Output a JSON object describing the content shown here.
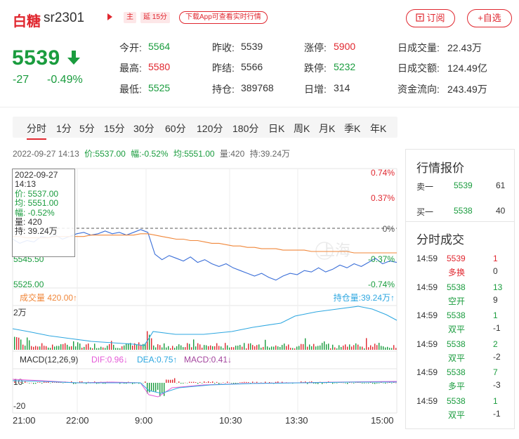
{
  "header": {
    "name": "白糖",
    "code": "sr2301",
    "tag_main": "主",
    "tag_delay": "延 15分",
    "download_text": "下载App可查看实时行情",
    "subscribe_label": "订阅",
    "favorite_label": "+自选"
  },
  "quote": {
    "price": "5539",
    "change": "-27",
    "change_pct": "-0.49%"
  },
  "stats": [
    {
      "label": "今开:",
      "value": "5564",
      "color": "green"
    },
    {
      "label": "昨收:",
      "value": "5539",
      "color": "gray"
    },
    {
      "label": "涨停:",
      "value": "5900",
      "color": "red"
    },
    {
      "label": "日成交量:",
      "value": "22.43万",
      "color": "gray"
    },
    {
      "label": "最高:",
      "value": "5580",
      "color": "red"
    },
    {
      "label": "昨结:",
      "value": "5566",
      "color": "gray"
    },
    {
      "label": "跌停:",
      "value": "5232",
      "color": "green"
    },
    {
      "label": "日成交额:",
      "value": "124.49亿",
      "color": "gray"
    },
    {
      "label": "最低:",
      "value": "5525",
      "color": "green"
    },
    {
      "label": "持仓:",
      "value": "389768",
      "color": "gray"
    },
    {
      "label": "日增:",
      "value": "314",
      "color": "gray"
    },
    {
      "label": "资金流向:",
      "value": "243.49万",
      "color": "gray"
    }
  ],
  "tabs": [
    "分时",
    "1分",
    "5分",
    "15分",
    "30分",
    "60分",
    "120分",
    "180分",
    "日K",
    "周K",
    "月K",
    "季K",
    "年K"
  ],
  "info_line": {
    "datetime": "2022-09-27 14:13",
    "price": "价:5537.00",
    "amp": "幅:-0.52%",
    "avg": "均:5551.00",
    "vol": "量:420",
    "hold": "持:39.24万"
  },
  "tooltip": {
    "date": "2022-09-27",
    "time": "14:13",
    "price": "价: 5537.00",
    "avg": "均: 5551.00",
    "amp": "幅: -0.52%",
    "vol": "量: 420",
    "hold": "持: 39.24万"
  },
  "chart_data": {
    "type": "line",
    "price_axis_labels": [
      "5545.50",
      "5525.00"
    ],
    "pct_axis_labels": [
      "0.74%",
      "0.37%",
      "0%",
      "-0.37%",
      "-0.74%"
    ],
    "time_axis_labels": [
      "21:00",
      "22:00",
      "9:00",
      "10:30",
      "13:30",
      "15:00"
    ],
    "volume_label": "成交量",
    "volume_value": "420.00↑",
    "hold_label": "持仓量:",
    "hold_value": "39.24万↑",
    "volume_axis_label": "2万",
    "macd_label": "MACD(12,26,9)",
    "dif": "DIF:0.96↓",
    "dea": "DEA:0.75↑",
    "macd": "MACD:0.41↓",
    "macd_axis_labels": [
      "10",
      "-20"
    ],
    "watermark": "上海",
    "price_series": [
      5558,
      5555,
      5557,
      5556,
      5560,
      5559,
      5561,
      5558,
      5560,
      5562,
      5563,
      5561,
      5562,
      5564,
      5562,
      5563,
      5561,
      5563,
      5565,
      5563,
      5547,
      5543,
      5546,
      5544,
      5542,
      5545,
      5541,
      5543,
      5540,
      5538,
      5540,
      5537,
      5535,
      5533,
      5531,
      5533,
      5530,
      5528,
      5531,
      5533,
      5532,
      5535,
      5534,
      5537,
      5534,
      5536,
      5539,
      5537,
      5540,
      5538,
      5541,
      5544,
      5540,
      5542,
      5541
    ],
    "avg_series": [
      5560,
      5560,
      5559,
      5559,
      5559,
      5559,
      5560,
      5560,
      5560,
      5560,
      5560,
      5561,
      5561,
      5561,
      5561,
      5561,
      5561,
      5561,
      5562,
      5562,
      5561,
      5560,
      5559,
      5558,
      5558,
      5557,
      5557,
      5556,
      5555,
      5555,
      5554,
      5553,
      5553,
      5552,
      5552,
      5551,
      5551,
      5551,
      5550,
      5550,
      5550,
      5550,
      5549,
      5549,
      5549,
      5549,
      5549,
      5549,
      5548,
      5548,
      5548,
      5548,
      5548,
      5548,
      5548
    ]
  },
  "panel": {
    "quote_title": "行情报价",
    "quotes": [
      {
        "label": "卖一",
        "price": "5539",
        "vol": "61"
      },
      {
        "label": "买一",
        "price": "5538",
        "vol": "40"
      }
    ],
    "trades_title": "分时成交",
    "trades": [
      {
        "time": "14:59",
        "price": "5539",
        "price_color": "red",
        "vol": "1",
        "vol_color": "red",
        "type": "多换",
        "type_color": "red",
        "delta": "0"
      },
      {
        "time": "14:59",
        "price": "5538",
        "price_color": "green",
        "vol": "13",
        "vol_color": "green",
        "type": "空开",
        "type_color": "green",
        "delta": "9"
      },
      {
        "time": "14:59",
        "price": "5538",
        "price_color": "green",
        "vol": "1",
        "vol_color": "green",
        "type": "双平",
        "type_color": "green",
        "delta": "-1"
      },
      {
        "time": "14:59",
        "price": "5538",
        "price_color": "green",
        "vol": "2",
        "vol_color": "green",
        "type": "双平",
        "type_color": "green",
        "delta": "-2"
      },
      {
        "time": "14:59",
        "price": "5538",
        "price_color": "green",
        "vol": "7",
        "vol_color": "green",
        "type": "多平",
        "type_color": "green",
        "delta": "-3"
      },
      {
        "time": "14:59",
        "price": "5538",
        "price_color": "green",
        "vol": "1",
        "vol_color": "green",
        "type": "双平",
        "type_color": "green",
        "delta": "-1"
      }
    ]
  }
}
